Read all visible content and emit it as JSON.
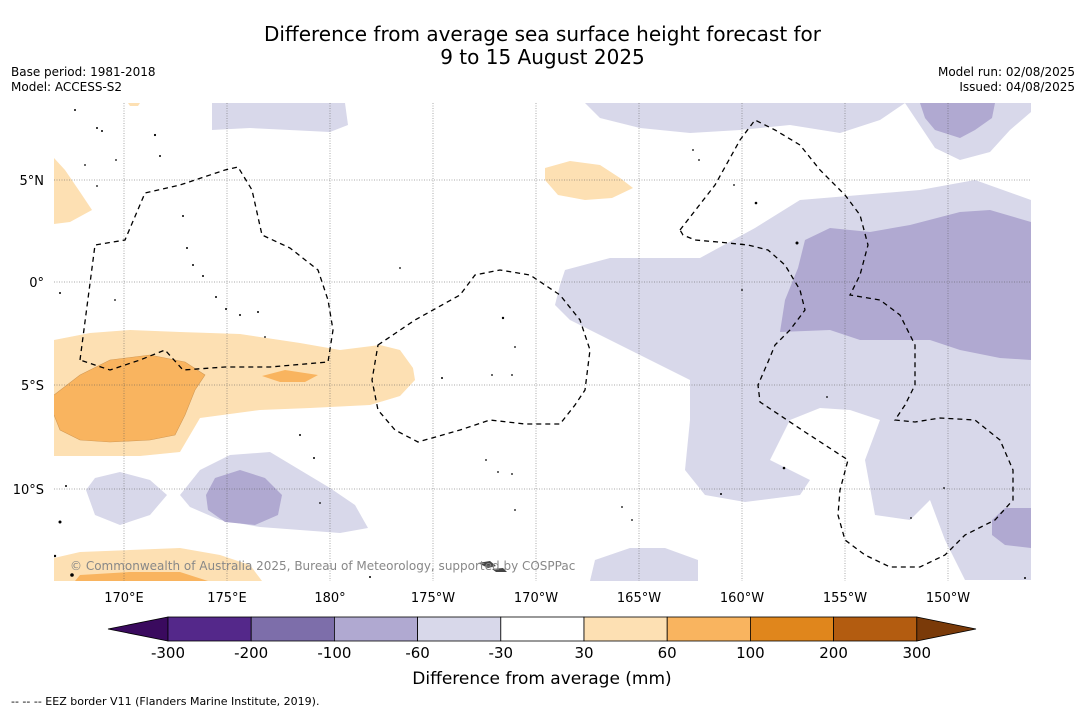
{
  "title": {
    "line1": "Difference from average sea surface height forecast for",
    "line2": "9 to 15 August 2025"
  },
  "meta_left": {
    "base_period": "Base period: 1981-2018",
    "model": "Model: ACCESS-S2"
  },
  "meta_right": {
    "model_run": "Model run: 02/08/2025",
    "issued": "Issued: 04/08/2025"
  },
  "map": {
    "lat_labels": [
      "5°N",
      "0°",
      "5°S",
      "10°S"
    ],
    "lon_labels": [
      "170°E",
      "175°E",
      "180°",
      "175°W",
      "170°W",
      "165°W",
      "160°W",
      "155°W",
      "150°W"
    ],
    "copyright": "© Commonwealth of Australia 2025, Bureau of Meteorology, supported by COSPPac"
  },
  "colorbar": {
    "title": "Difference from average (mm)",
    "tick_labels": [
      "-300",
      "-200",
      "-100",
      "-60",
      "-30",
      "30",
      "60",
      "100",
      "200",
      "300"
    ],
    "colors": [
      "#3a0a5e",
      "#54288a",
      "#7d6eaa",
      "#b0a9d1",
      "#d8d8ea",
      "#ffffff",
      "#fde0b3",
      "#f9b45f",
      "#e0861c",
      "#b35c10",
      "#7a3a09"
    ]
  },
  "footer": {
    "eez_note": "--  --  -- EEZ border V11 (Flanders Marine Institute, 2019)."
  }
}
